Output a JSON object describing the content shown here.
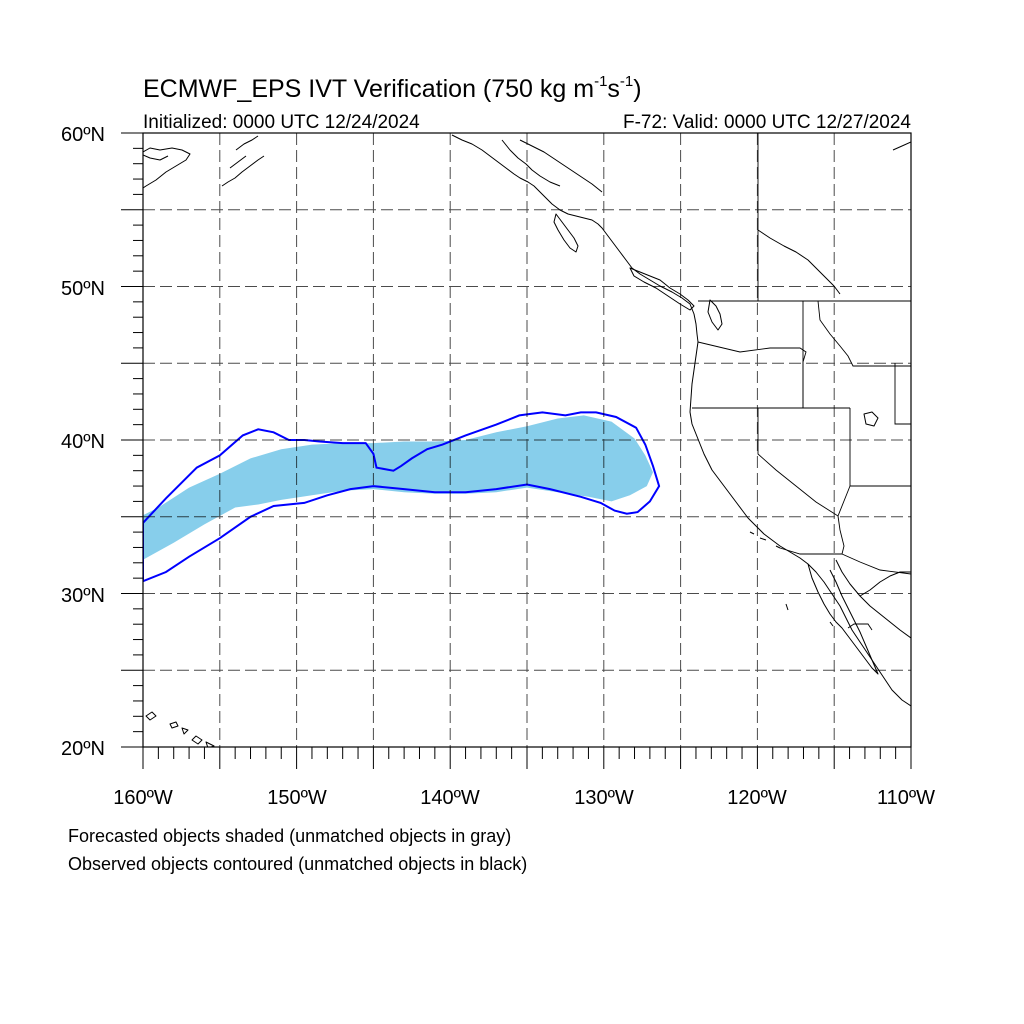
{
  "title": {
    "main": "ECMWF_EPS IVT Verification (750 kg m",
    "sup1": "-1",
    "mid": "s",
    "sup2": "-1",
    "end": ")"
  },
  "initialized": "Initialized: 0000 UTC 12/24/2024",
  "valid": "F-72: Valid: 0000 UTC 12/27/2024",
  "lat_labels": [
    "60ºN",
    "50ºN",
    "40ºN",
    "30ºN",
    "20ºN"
  ],
  "lon_labels": [
    "160ºW",
    "150ºW",
    "140ºW",
    "130ºW",
    "120ºW",
    "110ºW"
  ],
  "footer": {
    "line1": "Forecasted objects shaded (unmatched objects in gray)",
    "line2": "Observed objects contoured (unmatched objects in black)"
  },
  "map": {
    "lon_range": [
      -160,
      -110
    ],
    "lat_range": [
      20,
      60
    ],
    "grid_step_degrees": 5,
    "projection": "cylindrical equidistant"
  },
  "colors": {
    "forecast_fill": "#87ceeb",
    "observed_contour": "#0000ff",
    "coastline": "#000000",
    "grid": "#000000"
  },
  "forecast_object": {
    "shape": "ivt-object-polygon",
    "outline_lonlat": [
      [
        -160,
        32.2
      ],
      [
        -158,
        33.3
      ],
      [
        -156,
        34.5
      ],
      [
        -154,
        35.6
      ],
      [
        -152.5,
        35.8
      ],
      [
        -151,
        36.1
      ],
      [
        -149,
        36.4
      ],
      [
        -147,
        36.7
      ],
      [
        -145,
        36.8
      ],
      [
        -143,
        36.6
      ],
      [
        -141,
        36.5
      ],
      [
        -139,
        36.5
      ],
      [
        -137,
        36.6
      ],
      [
        -135,
        36.9
      ],
      [
        -133,
        36.6
      ],
      [
        -131,
        36.3
      ],
      [
        -129.5,
        36.0
      ],
      [
        -128.3,
        36.4
      ],
      [
        -127.2,
        37.0
      ],
      [
        -126.8,
        37.9
      ],
      [
        -127.3,
        39.0
      ],
      [
        -128.0,
        40.1
      ],
      [
        -129.5,
        41.2
      ],
      [
        -131.3,
        41.6
      ],
      [
        -133,
        41.4
      ],
      [
        -135,
        40.9
      ],
      [
        -137,
        40.5
      ],
      [
        -139,
        40.0
      ],
      [
        -141,
        39.9
      ],
      [
        -143,
        39.9
      ],
      [
        -145,
        39.8
      ],
      [
        -147,
        39.8
      ],
      [
        -149,
        39.7
      ],
      [
        -151,
        39.4
      ],
      [
        -153,
        38.8
      ],
      [
        -155,
        37.8
      ],
      [
        -157,
        36.9
      ],
      [
        -159,
        35.6
      ],
      [
        -160,
        35.1
      ]
    ]
  },
  "observed_object": {
    "shape": "ivt-object-contour",
    "outline_lonlat": [
      [
        -160,
        30.8
      ],
      [
        -158.5,
        31.4
      ],
      [
        -157,
        32.4
      ],
      [
        -155,
        33.6
      ],
      [
        -153,
        35.0
      ],
      [
        -151.5,
        35.7
      ],
      [
        -149.5,
        35.9
      ],
      [
        -148,
        36.4
      ],
      [
        -146.5,
        36.8
      ],
      [
        -145,
        37.0
      ],
      [
        -143,
        36.8
      ],
      [
        -141,
        36.6
      ],
      [
        -139,
        36.6
      ],
      [
        -137,
        36.8
      ],
      [
        -135,
        37.1
      ],
      [
        -133.5,
        36.8
      ],
      [
        -131.5,
        36.3
      ],
      [
        -130.2,
        35.9
      ],
      [
        -129.3,
        35.4
      ],
      [
        -128.5,
        35.2
      ],
      [
        -127.8,
        35.3
      ],
      [
        -127.0,
        36.0
      ],
      [
        -126.4,
        37.0
      ],
      [
        -126.8,
        38.3
      ],
      [
        -127.3,
        39.7
      ],
      [
        -127.9,
        40.8
      ],
      [
        -129.2,
        41.5
      ],
      [
        -130.5,
        41.8
      ],
      [
        -131.5,
        41.8
      ],
      [
        -132.5,
        41.6
      ],
      [
        -134,
        41.8
      ],
      [
        -135.5,
        41.6
      ],
      [
        -137,
        41.0
      ],
      [
        -139,
        40.3
      ],
      [
        -140.5,
        39.7
      ],
      [
        -141.5,
        39.4
      ],
      [
        -142.5,
        38.8
      ],
      [
        -143.2,
        38.3
      ],
      [
        -143.7,
        38.0
      ],
      [
        -144.8,
        38.2
      ],
      [
        -145,
        39.1
      ],
      [
        -145.5,
        39.8
      ],
      [
        -147,
        39.8
      ],
      [
        -148.5,
        39.9
      ],
      [
        -149.5,
        40.0
      ],
      [
        -150.5,
        40.0
      ],
      [
        -151.5,
        40.5
      ],
      [
        -152.5,
        40.7
      ],
      [
        -153.5,
        40.3
      ],
      [
        -155,
        39.0
      ],
      [
        -156.5,
        38.2
      ],
      [
        -158.5,
        36.2
      ],
      [
        -160,
        34.6
      ]
    ]
  }
}
